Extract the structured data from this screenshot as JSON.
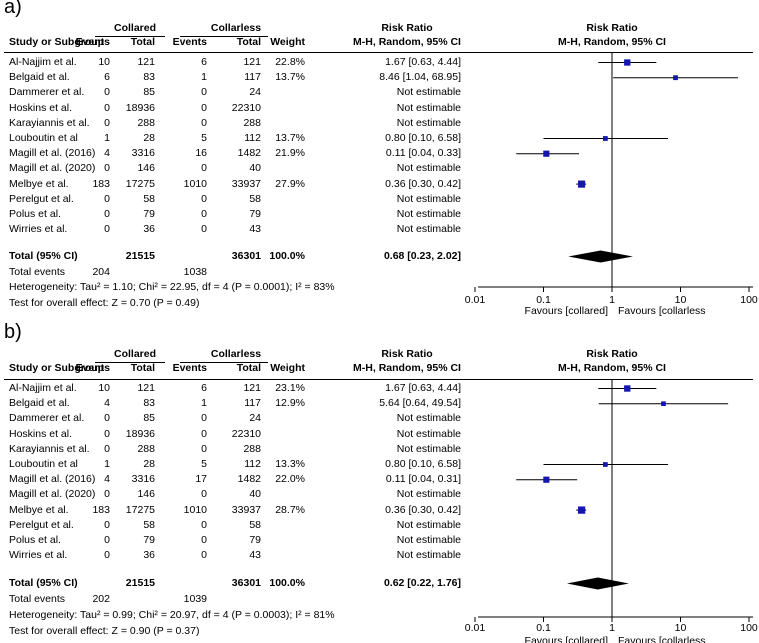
{
  "chart_data": [
    {
      "type": "forest",
      "panel_label": "a)",
      "group1_name": "Collared",
      "group2_name": "Collarless",
      "col_headers": {
        "study": "Study or Subgroup",
        "events": "Events",
        "total": "Total",
        "weight": "Weight",
        "rr": "Risk Ratio",
        "rr_sub": "M-H, Random, 95% CI"
      },
      "plot_title": "Risk Ratio",
      "plot_subtitle": "M-H, Random, 95% CI",
      "rows": [
        {
          "study": "Al-Najjim et al.",
          "e1": "10",
          "n1": "121",
          "e2": "6",
          "n2": "121",
          "weight": "22.8%",
          "rr_text": "1.67 [0.63, 4.44]",
          "rr": 1.67,
          "lo": 0.63,
          "hi": 4.44
        },
        {
          "study": "Belgaid et al.",
          "e1": "6",
          "n1": "83",
          "e2": "1",
          "n2": "117",
          "weight": "13.7%",
          "rr_text": "8.46 [1.04, 68.95]",
          "rr": 8.46,
          "lo": 1.04,
          "hi": 68.95
        },
        {
          "study": "Dammerer et al.",
          "e1": "0",
          "n1": "85",
          "e2": "0",
          "n2": "24",
          "weight": "",
          "rr_text": "Not estimable",
          "rr": null,
          "lo": null,
          "hi": null
        },
        {
          "study": "Hoskins et al.",
          "e1": "0",
          "n1": "18936",
          "e2": "0",
          "n2": "22310",
          "weight": "",
          "rr_text": "Not estimable",
          "rr": null,
          "lo": null,
          "hi": null
        },
        {
          "study": "Karayiannis et al.",
          "e1": "0",
          "n1": "288",
          "e2": "0",
          "n2": "288",
          "weight": "",
          "rr_text": "Not estimable",
          "rr": null,
          "lo": null,
          "hi": null
        },
        {
          "study": "Louboutin et al",
          "e1": "1",
          "n1": "28",
          "e2": "5",
          "n2": "112",
          "weight": "13.7%",
          "rr_text": "0.80 [0.10, 6.58]",
          "rr": 0.8,
          "lo": 0.1,
          "hi": 6.58
        },
        {
          "study": "Magill et al. (2016)",
          "e1": "4",
          "n1": "3316",
          "e2": "16",
          "n2": "1482",
          "weight": "21.9%",
          "rr_text": "0.11 [0.04, 0.33]",
          "rr": 0.11,
          "lo": 0.04,
          "hi": 0.33
        },
        {
          "study": "Magill et al. (2020)",
          "e1": "0",
          "n1": "146",
          "e2": "0",
          "n2": "40",
          "weight": "",
          "rr_text": "Not estimable",
          "rr": null,
          "lo": null,
          "hi": null
        },
        {
          "study": "Melbye et al.",
          "e1": "183",
          "n1": "17275",
          "e2": "1010",
          "n2": "33937",
          "weight": "27.9%",
          "rr_text": "0.36 [0.30, 0.42]",
          "rr": 0.36,
          "lo": 0.3,
          "hi": 0.42
        },
        {
          "study": "Perelgut et al.",
          "e1": "0",
          "n1": "58",
          "e2": "0",
          "n2": "58",
          "weight": "",
          "rr_text": "Not estimable",
          "rr": null,
          "lo": null,
          "hi": null
        },
        {
          "study": "Polus et al.",
          "e1": "0",
          "n1": "79",
          "e2": "0",
          "n2": "79",
          "weight": "",
          "rr_text": "Not estimable",
          "rr": null,
          "lo": null,
          "hi": null
        },
        {
          "study": "Wirries et al.",
          "e1": "0",
          "n1": "36",
          "e2": "0",
          "n2": "43",
          "weight": "",
          "rr_text": "Not estimable",
          "rr": null,
          "lo": null,
          "hi": null
        }
      ],
      "total": {
        "label": "Total (95% CI)",
        "n1": "21515",
        "n2": "36301",
        "weight": "100.0%",
        "rr_text": "0.68 [0.23, 2.02]",
        "rr": 0.68,
        "lo": 0.23,
        "hi": 2.02
      },
      "total_events": {
        "label": "Total events",
        "e1": "204",
        "e2": "1038"
      },
      "heterogeneity": "Heterogeneity: Tau² = 1.10; Chi² = 22.95, df = 4 (P = 0.0001); I² = 83%",
      "overall_effect": "Test for overall effect: Z = 0.70 (P = 0.49)",
      "x_axis": {
        "scale": "log",
        "ticks": [
          0.01,
          0.1,
          1,
          10,
          100
        ],
        "tick_labels": [
          "0.01",
          "0.1",
          "1",
          "10",
          "100"
        ],
        "xlim": [
          0.01,
          100
        ]
      },
      "favours_left": "Favours [collared]",
      "favours_right": "Favours [collarless"
    },
    {
      "type": "forest",
      "panel_label": "b)",
      "group1_name": "Collared",
      "group2_name": "Collarless",
      "col_headers": {
        "study": "Study or Subgroup",
        "events": "Events",
        "total": "Total",
        "weight": "Weight",
        "rr": "Risk Ratio",
        "rr_sub": "M-H, Random, 95% CI"
      },
      "plot_title": "Risk Ratio",
      "plot_subtitle": "M-H, Random, 95% CI",
      "rows": [
        {
          "study": "Al-Najjim et al.",
          "e1": "10",
          "n1": "121",
          "e2": "6",
          "n2": "121",
          "weight": "23.1%",
          "rr_text": "1.67 [0.63, 4.44]",
          "rr": 1.67,
          "lo": 0.63,
          "hi": 4.44
        },
        {
          "study": "Belgaid et al.",
          "e1": "4",
          "n1": "83",
          "e2": "1",
          "n2": "117",
          "weight": "12.9%",
          "rr_text": "5.64 [0.64, 49.54]",
          "rr": 5.64,
          "lo": 0.64,
          "hi": 49.54
        },
        {
          "study": "Dammerer et al.",
          "e1": "0",
          "n1": "85",
          "e2": "0",
          "n2": "24",
          "weight": "",
          "rr_text": "Not estimable",
          "rr": null,
          "lo": null,
          "hi": null
        },
        {
          "study": "Hoskins et al.",
          "e1": "0",
          "n1": "18936",
          "e2": "0",
          "n2": "22310",
          "weight": "",
          "rr_text": "Not estimable",
          "rr": null,
          "lo": null,
          "hi": null
        },
        {
          "study": "Karayiannis et al.",
          "e1": "0",
          "n1": "288",
          "e2": "0",
          "n2": "288",
          "weight": "",
          "rr_text": "Not estimable",
          "rr": null,
          "lo": null,
          "hi": null
        },
        {
          "study": "Louboutin et al",
          "e1": "1",
          "n1": "28",
          "e2": "5",
          "n2": "112",
          "weight": "13.3%",
          "rr_text": "0.80 [0.10, 6.58]",
          "rr": 0.8,
          "lo": 0.1,
          "hi": 6.58
        },
        {
          "study": "Magill et al. (2016)",
          "e1": "4",
          "n1": "3316",
          "e2": "17",
          "n2": "1482",
          "weight": "22.0%",
          "rr_text": "0.11 [0.04, 0.31]",
          "rr": 0.11,
          "lo": 0.04,
          "hi": 0.31
        },
        {
          "study": "Magill et al. (2020)",
          "e1": "0",
          "n1": "146",
          "e2": "0",
          "n2": "40",
          "weight": "",
          "rr_text": "Not estimable",
          "rr": null,
          "lo": null,
          "hi": null
        },
        {
          "study": "Melbye et al.",
          "e1": "183",
          "n1": "17275",
          "e2": "1010",
          "n2": "33937",
          "weight": "28.7%",
          "rr_text": "0.36 [0.30, 0.42]",
          "rr": 0.36,
          "lo": 0.3,
          "hi": 0.42
        },
        {
          "study": "Perelgut et al.",
          "e1": "0",
          "n1": "58",
          "e2": "0",
          "n2": "58",
          "weight": "",
          "rr_text": "Not estimable",
          "rr": null,
          "lo": null,
          "hi": null
        },
        {
          "study": "Polus et al.",
          "e1": "0",
          "n1": "79",
          "e2": "0",
          "n2": "79",
          "weight": "",
          "rr_text": "Not estimable",
          "rr": null,
          "lo": null,
          "hi": null
        },
        {
          "study": "Wirries et al.",
          "e1": "0",
          "n1": "36",
          "e2": "0",
          "n2": "43",
          "weight": "",
          "rr_text": "Not estimable",
          "rr": null,
          "lo": null,
          "hi": null
        }
      ],
      "total": {
        "label": "Total (95% CI)",
        "n1": "21515",
        "n2": "36301",
        "weight": "100.0%",
        "rr_text": "0.62 [0.22, 1.76]",
        "rr": 0.62,
        "lo": 0.22,
        "hi": 1.76
      },
      "total_events": {
        "label": "Total events",
        "e1": "202",
        "e2": "1039"
      },
      "heterogeneity": "Heterogeneity: Tau² = 0.99; Chi² = 20.97, df = 4 (P = 0.0003); I² = 81%",
      "overall_effect": "Test for overall effect: Z = 0.90 (P = 0.37)",
      "x_axis": {
        "scale": "log",
        "ticks": [
          0.01,
          0.1,
          1,
          10,
          100
        ],
        "tick_labels": [
          "0.01",
          "0.1",
          "1",
          "10",
          "100"
        ],
        "xlim": [
          0.01,
          100
        ]
      },
      "favours_left": "Favours [collared]",
      "favours_right": "Favours [collarless"
    }
  ],
  "colors": {
    "marker": "#1515b0",
    "line": "#000000",
    "diamond": "#000000"
  }
}
